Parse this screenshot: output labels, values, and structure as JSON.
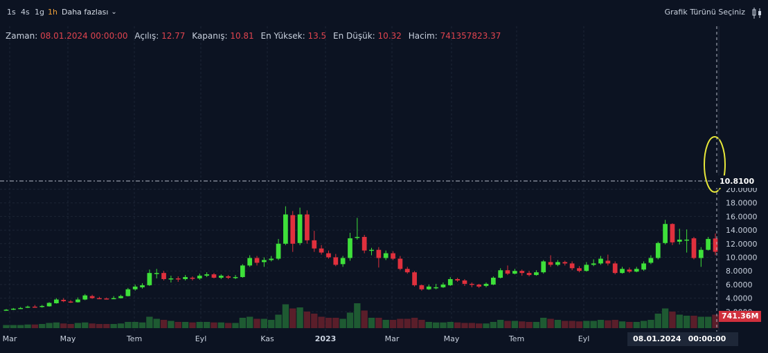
{
  "toolbar": {
    "timeframes": [
      "1s",
      "4s",
      "1g",
      "1h"
    ],
    "active_timeframe": "1h",
    "more_label": "Daha fazlası",
    "chart_type_label": "Grafik Türünü Seçiniz"
  },
  "ohlc": {
    "time_label": "Zaman:",
    "time_value": "08.01.2024 00:00:00",
    "open_label": "Açılış:",
    "open_value": "12.77",
    "close_label": "Kapanış:",
    "close_value": "10.81",
    "high_label": "En Yüksek:",
    "high_value": "13.5",
    "low_label": "En Düşük:",
    "low_value": "10.32",
    "volume_label": "Hacim:",
    "volume_value": "741357823.37"
  },
  "last_price_label": "10.8100",
  "volume_tag": "741.36M",
  "crosshair": {
    "date": "08.01.2024",
    "time": "00:00:00"
  },
  "colors": {
    "up": "#3ee03a",
    "down": "#e0303d",
    "up_vol": "#1e5a32",
    "down_vol": "#5a1e2a",
    "bg": "#0c1322",
    "highlight": "#e8e83a"
  },
  "chart_data": {
    "type": "candlestick",
    "y_ticks": [
      "20.0000",
      "18.0000",
      "16.0000",
      "14.0000",
      "12.0000",
      "10.0000",
      "8.0000",
      "6.0000",
      "4.0000",
      "2.0000"
    ],
    "x_ticks": [
      "Mar",
      "May",
      "Tem",
      "Eyl",
      "Kas",
      "2023",
      "Mar",
      "May",
      "Tem",
      "Eyl"
    ],
    "ylim": [
      0,
      21
    ],
    "grid": true,
    "candles": [
      [
        2.2,
        2.3,
        2.15,
        2.4,
        0.3
      ],
      [
        2.3,
        2.45,
        2.25,
        2.55,
        0.3
      ],
      [
        2.45,
        2.55,
        2.4,
        2.7,
        0.3
      ],
      [
        2.6,
        2.75,
        2.55,
        2.9,
        0.35
      ],
      [
        2.75,
        2.7,
        2.6,
        3.0,
        0.35
      ],
      [
        2.7,
        2.85,
        2.6,
        3.0,
        0.4
      ],
      [
        2.8,
        3.3,
        2.75,
        3.4,
        0.5
      ],
      [
        3.25,
        3.8,
        3.2,
        4.0,
        0.55
      ],
      [
        3.75,
        3.55,
        3.4,
        4.0,
        0.45
      ],
      [
        3.5,
        3.4,
        3.3,
        3.7,
        0.4
      ],
      [
        3.4,
        3.8,
        3.35,
        4.1,
        0.5
      ],
      [
        3.8,
        4.4,
        3.7,
        4.6,
        0.55
      ],
      [
        4.3,
        4.0,
        3.9,
        4.5,
        0.45
      ],
      [
        4.0,
        3.95,
        3.85,
        4.2,
        0.4
      ],
      [
        3.95,
        3.9,
        3.8,
        4.1,
        0.4
      ],
      [
        3.9,
        4.0,
        3.85,
        4.3,
        0.4
      ],
      [
        4.0,
        4.3,
        3.95,
        4.5,
        0.45
      ],
      [
        4.3,
        5.3,
        4.25,
        5.5,
        0.6
      ],
      [
        5.3,
        5.7,
        5.1,
        6.0,
        0.6
      ],
      [
        5.6,
        5.9,
        5.4,
        6.2,
        0.55
      ],
      [
        5.9,
        7.7,
        5.8,
        8.2,
        1.1
      ],
      [
        7.6,
        7.7,
        6.9,
        8.3,
        0.9
      ],
      [
        7.7,
        6.8,
        6.6,
        8.0,
        0.8
      ],
      [
        6.8,
        6.9,
        6.3,
        7.3,
        0.7
      ],
      [
        6.9,
        6.8,
        6.4,
        7.2,
        0.6
      ],
      [
        6.8,
        7.1,
        6.6,
        7.4,
        0.6
      ],
      [
        7.0,
        6.9,
        6.6,
        7.2,
        0.55
      ],
      [
        6.9,
        7.3,
        6.7,
        7.6,
        0.6
      ],
      [
        7.3,
        7.5,
        7.1,
        7.8,
        0.6
      ],
      [
        7.5,
        7.0,
        6.9,
        7.7,
        0.55
      ],
      [
        7.0,
        7.3,
        6.8,
        7.5,
        0.55
      ],
      [
        7.2,
        7.0,
        6.8,
        7.4,
        0.5
      ],
      [
        7.0,
        7.1,
        6.8,
        7.4,
        0.5
      ],
      [
        7.1,
        8.8,
        7.0,
        9.0,
        1.0
      ],
      [
        8.8,
        9.9,
        8.6,
        10.3,
        1.1
      ],
      [
        9.9,
        9.2,
        8.8,
        10.2,
        0.9
      ],
      [
        9.3,
        9.6,
        8.6,
        10.0,
        0.9
      ],
      [
        9.6,
        9.8,
        9.4,
        10.2,
        0.8
      ],
      [
        9.8,
        12.0,
        9.6,
        12.7,
        1.3
      ],
      [
        12.0,
        16.3,
        11.8,
        17.5,
        2.3
      ],
      [
        16.2,
        12.0,
        10.8,
        16.8,
        1.9
      ],
      [
        12.1,
        16.3,
        11.8,
        17.3,
        2.0
      ],
      [
        16.3,
        12.5,
        12.0,
        16.9,
        1.6
      ],
      [
        12.5,
        11.3,
        10.8,
        13.9,
        1.4
      ],
      [
        11.3,
        10.7,
        10.4,
        11.8,
        1.1
      ],
      [
        10.6,
        10.0,
        9.8,
        11.0,
        1.0
      ],
      [
        10.0,
        8.9,
        8.7,
        10.5,
        1.0
      ],
      [
        9.0,
        9.9,
        8.6,
        10.2,
        0.9
      ],
      [
        9.9,
        12.8,
        9.5,
        13.6,
        1.5
      ],
      [
        12.9,
        13.0,
        12.6,
        15.8,
        2.4
      ],
      [
        13.0,
        11.0,
        10.6,
        13.3,
        1.7
      ],
      [
        11.0,
        11.1,
        10.3,
        11.4,
        1.0
      ],
      [
        11.1,
        9.9,
        8.5,
        11.5,
        1.0
      ],
      [
        9.9,
        10.6,
        9.6,
        11.0,
        0.8
      ],
      [
        10.6,
        9.8,
        9.6,
        10.9,
        0.8
      ],
      [
        9.8,
        8.3,
        8.1,
        10.2,
        0.9
      ],
      [
        8.3,
        7.8,
        7.6,
        8.6,
        0.9
      ],
      [
        7.8,
        5.9,
        5.7,
        8.0,
        1.0
      ],
      [
        5.9,
        5.3,
        5.1,
        6.0,
        0.8
      ],
      [
        5.3,
        5.7,
        5.2,
        6.0,
        0.6
      ],
      [
        5.6,
        5.6,
        5.3,
        6.1,
        0.55
      ],
      [
        5.6,
        6.0,
        5.5,
        6.3,
        0.55
      ],
      [
        5.9,
        6.8,
        5.8,
        7.1,
        0.6
      ],
      [
        6.8,
        6.6,
        6.4,
        7.0,
        0.55
      ],
      [
        6.6,
        6.1,
        5.8,
        6.8,
        0.5
      ],
      [
        6.1,
        6.0,
        5.6,
        6.3,
        0.5
      ],
      [
        6.0,
        5.7,
        5.5,
        6.1,
        0.45
      ],
      [
        5.8,
        6.1,
        5.6,
        6.3,
        0.45
      ],
      [
        6.0,
        7.0,
        5.9,
        7.2,
        0.6
      ],
      [
        7.0,
        8.1,
        6.9,
        8.4,
        0.8
      ],
      [
        8.1,
        7.6,
        7.4,
        8.8,
        0.7
      ],
      [
        7.6,
        8.0,
        7.5,
        8.3,
        0.7
      ],
      [
        8.0,
        7.7,
        7.3,
        8.2,
        0.65
      ],
      [
        7.7,
        7.4,
        7.2,
        8.0,
        0.6
      ],
      [
        7.4,
        7.8,
        7.3,
        8.1,
        0.6
      ],
      [
        7.8,
        9.4,
        7.6,
        9.6,
        1.0
      ],
      [
        9.3,
        8.9,
        8.6,
        10.3,
        0.9
      ],
      [
        8.9,
        9.3,
        8.7,
        9.6,
        0.8
      ],
      [
        9.3,
        9.1,
        8.8,
        9.5,
        0.7
      ],
      [
        9.1,
        8.4,
        8.1,
        9.4,
        0.7
      ],
      [
        8.4,
        8.0,
        7.8,
        8.7,
        0.65
      ],
      [
        8.0,
        8.9,
        7.9,
        9.3,
        0.7
      ],
      [
        8.9,
        9.1,
        8.7,
        9.7,
        0.7
      ],
      [
        9.1,
        9.8,
        8.9,
        10.2,
        0.8
      ],
      [
        9.5,
        9.1,
        8.8,
        10.4,
        0.75
      ],
      [
        9.1,
        7.7,
        7.5,
        9.4,
        0.8
      ],
      [
        7.7,
        8.3,
        7.6,
        8.6,
        0.65
      ],
      [
        8.2,
        7.9,
        7.7,
        8.5,
        0.6
      ],
      [
        7.9,
        8.3,
        7.8,
        8.6,
        0.6
      ],
      [
        8.2,
        9.1,
        8.0,
        9.4,
        0.7
      ],
      [
        9.2,
        9.9,
        9.0,
        10.3,
        0.8
      ],
      [
        9.9,
        12.1,
        9.7,
        12.3,
        1.4
      ],
      [
        12.1,
        14.9,
        11.9,
        15.5,
        1.9
      ],
      [
        14.9,
        12.2,
        11.8,
        15.0,
        1.6
      ],
      [
        12.3,
        12.6,
        11.9,
        14.2,
        1.3
      ],
      [
        12.6,
        12.6,
        10.7,
        14.1,
        1.2
      ],
      [
        12.8,
        9.9,
        9.7,
        13.0,
        1.2
      ],
      [
        9.9,
        11.1,
        8.6,
        11.5,
        1.1
      ],
      [
        11.1,
        12.7,
        11.0,
        13.0,
        1.1
      ],
      [
        12.77,
        10.81,
        10.32,
        13.5,
        1.3
      ]
    ]
  }
}
